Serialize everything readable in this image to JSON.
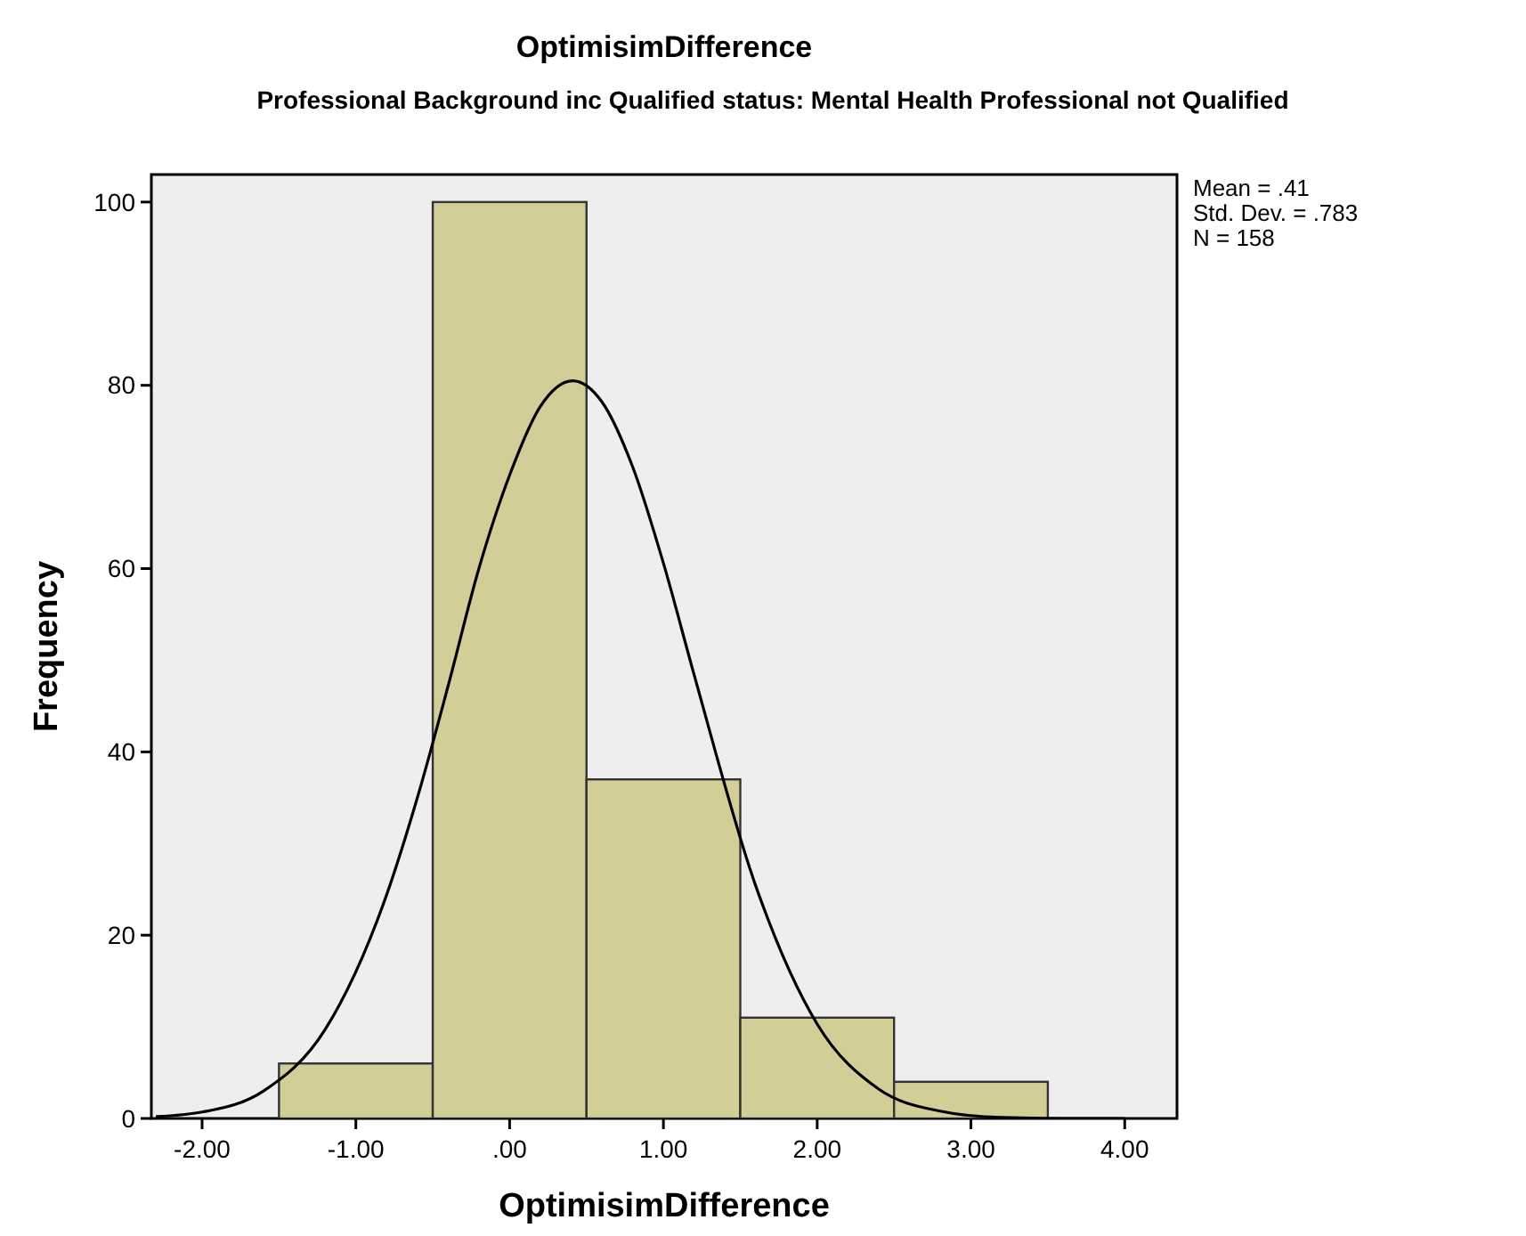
{
  "chart_data": {
    "type": "histogram",
    "title": "OptimisimDifference",
    "subtitle": "Professional Background inc Qualified status: Mental Health Professional not Qualified",
    "xlabel": "OptimisimDifference",
    "ylabel": "Frequency",
    "bins": [
      -1.5,
      -0.5,
      0.5,
      1.5,
      2.5,
      3.5
    ],
    "values": [
      6,
      100,
      37,
      11,
      4
    ],
    "color": "#d3ce97",
    "series": [
      {
        "type": "line",
        "color": "#000000",
        "x": [
          -2.3,
          -2.0,
          -1.6,
          -1.2,
          -0.8,
          -0.6,
          -0.4,
          -0.2,
          0,
          0.2,
          0.41,
          0.6,
          0.8,
          1.0,
          1.2,
          1.6,
          2.0,
          2.4,
          2.8,
          3.2,
          3.6,
          4.0
        ],
        "values": [
          0.2,
          0.7,
          3.0,
          9.7,
          24.4,
          35.0,
          47.2,
          60.0,
          70.2,
          77.7,
          80.5,
          78.2,
          71.1,
          60.6,
          48.4,
          25.4,
          10.3,
          3.2,
          0.8,
          0.1,
          0,
          0
        ]
      }
    ],
    "xlim": [
      -2.33,
      4.34
    ],
    "ylim": [
      0,
      103
    ],
    "xticks": [
      {
        "value": -2,
        "label": "-2.00"
      },
      {
        "value": -1,
        "label": "-1.00"
      },
      {
        "value": 0,
        "label": ".00"
      },
      {
        "value": 1,
        "label": "1.00"
      },
      {
        "value": 2,
        "label": "2.00"
      },
      {
        "value": 3,
        "label": "3.00"
      },
      {
        "value": 4,
        "label": "4.00"
      }
    ],
    "yticks": [
      0,
      20,
      40,
      60,
      80,
      100
    ],
    "annotations": [
      "Mean = .41",
      "Std. Dev. = .783",
      "N = 158"
    ],
    "grid": false
  }
}
